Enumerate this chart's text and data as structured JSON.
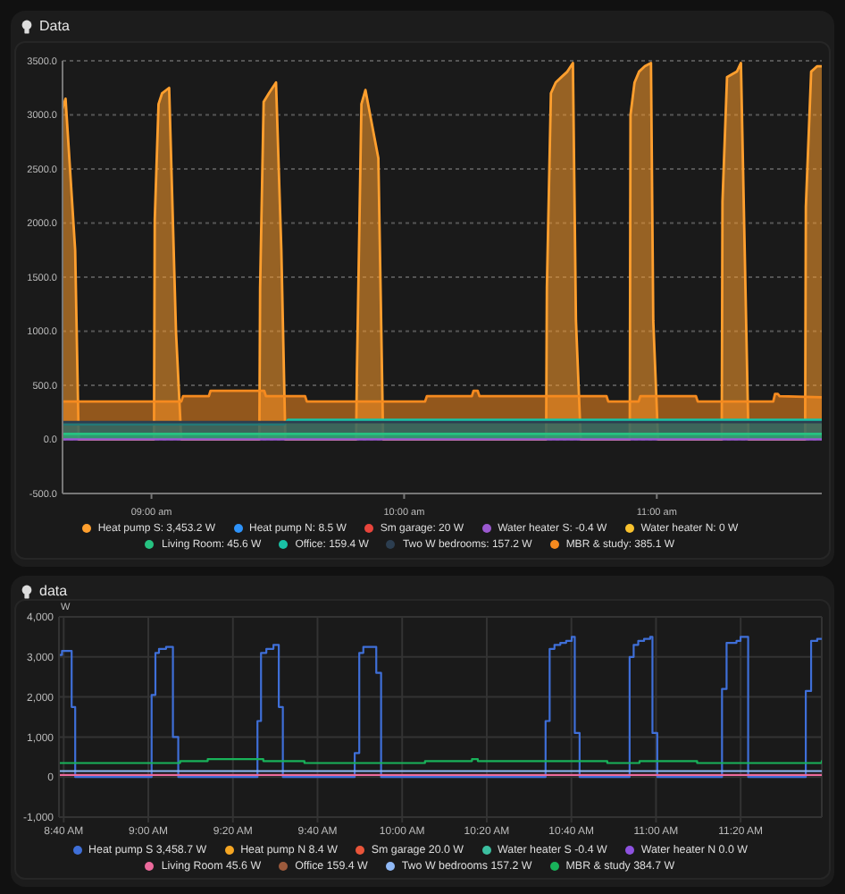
{
  "chart_data": [
    {
      "type": "area",
      "title": "Data",
      "xlim": [
        8.648,
        11.653
      ],
      "xticks": [
        {
          "value": 9,
          "label": "09:00 am"
        },
        {
          "value": 10,
          "label": "10:00 am"
        },
        {
          "value": 11,
          "label": "11:00 am"
        }
      ],
      "ylim": [
        -500,
        3500
      ],
      "yticks": [
        {
          "value": -500,
          "label": "-500.0"
        },
        {
          "value": 0,
          "label": "0.0"
        },
        {
          "value": 500,
          "label": "500.0"
        },
        {
          "value": 1000,
          "label": "1000.0"
        },
        {
          "value": 1500,
          "label": "1500.0"
        },
        {
          "value": 2000,
          "label": "2000.0"
        },
        {
          "value": 2500,
          "label": "2500.0"
        },
        {
          "value": 3000,
          "label": "3000.0"
        },
        {
          "value": 3500,
          "label": "3500.0"
        }
      ],
      "grid": "y",
      "legend": "bottom",
      "series": [
        {
          "name": "Heat pump S: 3,453.2 W",
          "color": "#ff9f2e",
          "x": [
            8.648,
            8.66,
            8.698,
            8.712,
            9.01,
            9.013,
            9.028,
            9.042,
            9.07,
            9.097,
            9.118,
            9.427,
            9.43,
            9.444,
            9.465,
            9.493,
            9.514,
            9.53,
            9.81,
            9.813,
            9.831,
            9.847,
            9.898,
            9.917,
            10.562,
            10.565,
            10.581,
            10.6,
            10.623,
            10.646,
            10.668,
            10.68,
            10.699,
            10.893,
            10.896,
            10.912,
            10.93,
            10.953,
            10.977,
            10.986,
            11.005,
            11.257,
            11.26,
            11.278,
            11.317,
            11.333,
            11.363,
            11.587,
            11.59,
            11.611,
            11.635,
            11.653
          ],
          "values": [
            3060,
            3150,
            1750,
            0,
            0,
            2030,
            3100,
            3200,
            3250,
            1000,
            0,
            0,
            1400,
            3120,
            3200,
            3300,
            1750,
            0,
            0,
            600,
            3100,
            3230,
            2600,
            0,
            0,
            1400,
            3200,
            3300,
            3350,
            3400,
            3480,
            1100,
            0,
            0,
            3000,
            3300,
            3400,
            3450,
            3480,
            1100,
            0,
            0,
            2200,
            3350,
            3400,
            3480,
            0,
            0,
            2150,
            3400,
            3450,
            3450
          ]
        },
        {
          "name": "Heat pump N: 8.5 W",
          "color": "#2e93fa"
        },
        {
          "name": "Sm garage: 20 W",
          "color": "#e8453c"
        },
        {
          "name": "Water heater S: -0.4 W",
          "type": "line",
          "color": "#9b59d0",
          "x": [
            8.648,
            11.653
          ],
          "values": [
            0,
            0
          ]
        },
        {
          "name": "Water heater N: 0 W",
          "color": "#f9c22e"
        },
        {
          "name": "Living Room: 45.6 W",
          "color": "#26c281",
          "x": [
            8.648,
            11.653
          ],
          "values": [
            50,
            50
          ]
        },
        {
          "name": "Office: 159.4 W",
          "color": "#19c2a6",
          "x": [
            8.648,
            9.525,
            9.54,
            11.653
          ],
          "values": [
            140,
            140,
            180,
            180
          ]
        },
        {
          "name": "Two W bedrooms: 157.2 W",
          "color": "#2c3e50",
          "x": [
            8.648,
            11.653
          ],
          "values": [
            160,
            160
          ]
        },
        {
          "name": "MBR & study: 385.1 W",
          "color": "#f58a1f",
          "x": [
            8.648,
            9.118,
            9.125,
            9.227,
            9.234,
            9.446,
            9.453,
            9.608,
            9.615,
            10.083,
            10.09,
            10.268,
            10.275,
            10.291,
            10.298,
            10.801,
            10.808,
            10.928,
            10.935,
            11.155,
            11.162,
            11.461,
            11.468,
            11.479,
            11.486,
            11.653
          ],
          "values": [
            350,
            350,
            400,
            400,
            450,
            450,
            400,
            400,
            350,
            350,
            400,
            400,
            450,
            450,
            400,
            400,
            350,
            350,
            400,
            400,
            350,
            350,
            420,
            420,
            400,
            390
          ]
        }
      ]
    },
    {
      "type": "step",
      "title": "data",
      "ylabel": "W",
      "xlim": [
        8.648,
        11.653
      ],
      "xticks": [
        {
          "value": 8.6667,
          "label": "8:40 AM"
        },
        {
          "value": 9,
          "label": "9:00 AM"
        },
        {
          "value": 9.3333,
          "label": "9:20 AM"
        },
        {
          "value": 9.6667,
          "label": "9:40 AM"
        },
        {
          "value": 10,
          "label": "10:00 AM"
        },
        {
          "value": 10.3333,
          "label": "10:20 AM"
        },
        {
          "value": 10.6667,
          "label": "10:40 AM"
        },
        {
          "value": 11,
          "label": "11:00 AM"
        },
        {
          "value": 11.3333,
          "label": "11:20 AM"
        }
      ],
      "ylim": [
        -1000,
        4000
      ],
      "yticks": [
        {
          "value": -1000,
          "label": "-1,000"
        },
        0,
        {
          "value": 1000,
          "label": "1,000"
        },
        {
          "value": 2000,
          "label": "2,000"
        },
        {
          "value": 3000,
          "label": "3,000"
        },
        {
          "value": 4000,
          "label": "4,000"
        }
      ],
      "grid": true,
      "legend": "bottom",
      "series": [
        {
          "name": "Heat pump S 3,458.7 W",
          "color": "#3f6fd8",
          "x": [
            8.648,
            8.66,
            8.698,
            8.712,
            9.01,
            9.013,
            9.028,
            9.042,
            9.07,
            9.097,
            9.118,
            9.427,
            9.43,
            9.444,
            9.465,
            9.493,
            9.514,
            9.53,
            9.81,
            9.813,
            9.831,
            9.847,
            9.898,
            9.917,
            10.562,
            10.565,
            10.581,
            10.6,
            10.623,
            10.646,
            10.668,
            10.68,
            10.699,
            10.893,
            10.896,
            10.912,
            10.93,
            10.953,
            10.977,
            10.986,
            11.005,
            11.257,
            11.26,
            11.278,
            11.317,
            11.333,
            11.363,
            11.587,
            11.59,
            11.611,
            11.635,
            11.653
          ],
          "values": [
            3050,
            3150,
            1750,
            0,
            0,
            2050,
            3100,
            3200,
            3250,
            1000,
            0,
            0,
            1400,
            3100,
            3200,
            3300,
            1750,
            0,
            0,
            600,
            3100,
            3250,
            2600,
            0,
            0,
            1400,
            3200,
            3300,
            3350,
            3400,
            3500,
            1100,
            0,
            0,
            3000,
            3300,
            3400,
            3450,
            3500,
            1100,
            0,
            0,
            2200,
            3350,
            3400,
            3500,
            0,
            0,
            2150,
            3400,
            3450,
            3450
          ]
        },
        {
          "name": "Heat pump N 8.4 W",
          "color": "#f5a623"
        },
        {
          "name": "Sm garage 20.0 W",
          "color": "#e9553a"
        },
        {
          "name": "Water heater S -0.4 W",
          "color": "#3cbfa0"
        },
        {
          "name": "Water heater N 0.0 W",
          "color": "#8e52e0"
        },
        {
          "name": "Living Room 45.6 W",
          "color": "#ec6a9c",
          "x": [
            8.648,
            11.653
          ],
          "values": [
            50,
            50
          ]
        },
        {
          "name": "Office 159.4 W",
          "color": "#9c5a3c"
        },
        {
          "name": "Two W bedrooms 157.2 W",
          "color": "#8fb8f5",
          "x": [
            8.648,
            11.653
          ],
          "values": [
            150,
            150
          ]
        },
        {
          "name": "MBR & study 384.7 W",
          "color": "#19b25a",
          "x": [
            8.648,
            9.118,
            9.125,
            9.227,
            9.234,
            9.446,
            9.453,
            9.608,
            9.615,
            10.083,
            10.09,
            10.268,
            10.275,
            10.291,
            10.298,
            10.801,
            10.808,
            10.928,
            10.935,
            11.155,
            11.162,
            11.653
          ],
          "values": [
            350,
            350,
            400,
            400,
            450,
            450,
            400,
            400,
            350,
            350,
            400,
            400,
            450,
            450,
            400,
            400,
            350,
            350,
            400,
            400,
            350,
            400
          ]
        }
      ]
    }
  ]
}
